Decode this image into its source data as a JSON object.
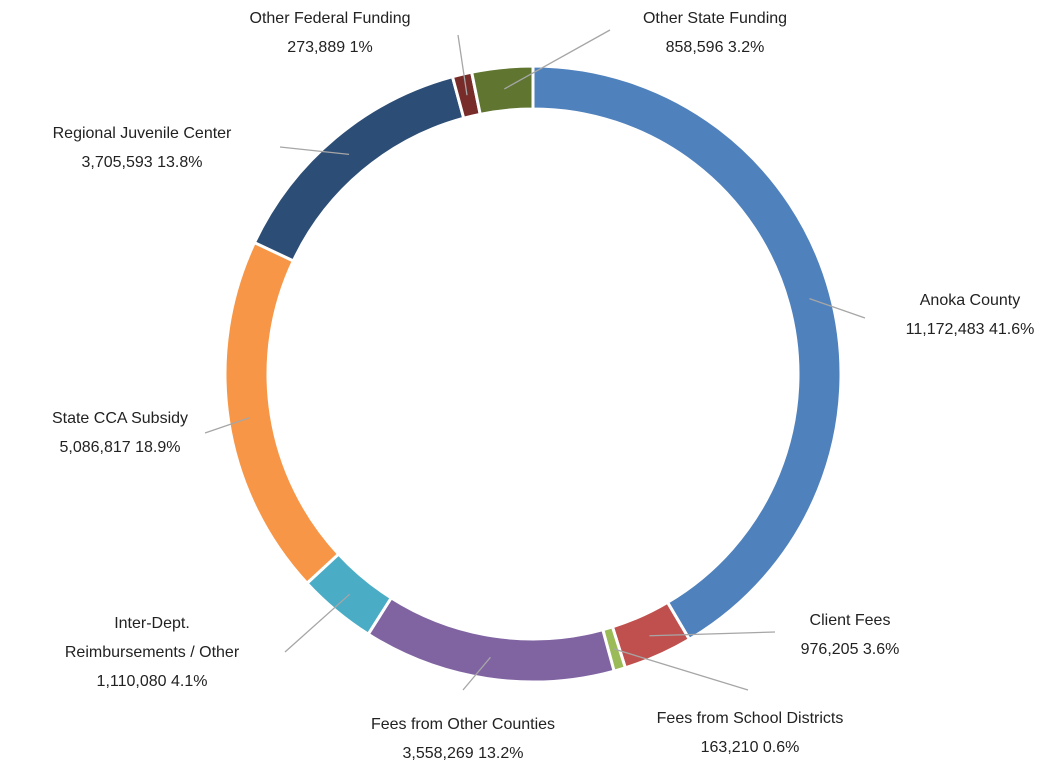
{
  "chart_data": {
    "type": "donut",
    "categories": [
      "Anoka County",
      "Client Fees",
      "Fees from School Districts",
      "Fees from Other Counties",
      "Inter-Dept.\nReimbursements / Other",
      "State CCA Subsidy",
      "Regional Juvenile Center",
      "Other Federal Funding",
      "Other State Funding"
    ],
    "values": [
      11172483,
      976205,
      163210,
      3558269,
      1110080,
      5086817,
      3705593,
      273889,
      858596
    ],
    "value_labels": [
      "11,172,483 41.6%",
      "976,205 3.6%",
      "163,210 0.6%",
      "3,558,269 13.2%",
      "1,110,080 4.1%",
      "5,086,817 18.9%",
      "3,705,593 13.8%",
      "273,889 1%",
      "858,596 3.2%"
    ],
    "colors": [
      "#4f81bd",
      "#c0504d",
      "#9bbb59",
      "#8064a2",
      "#4bacc6",
      "#f79646",
      "#2c4d75",
      "#772c2a",
      "#5f7530"
    ]
  }
}
